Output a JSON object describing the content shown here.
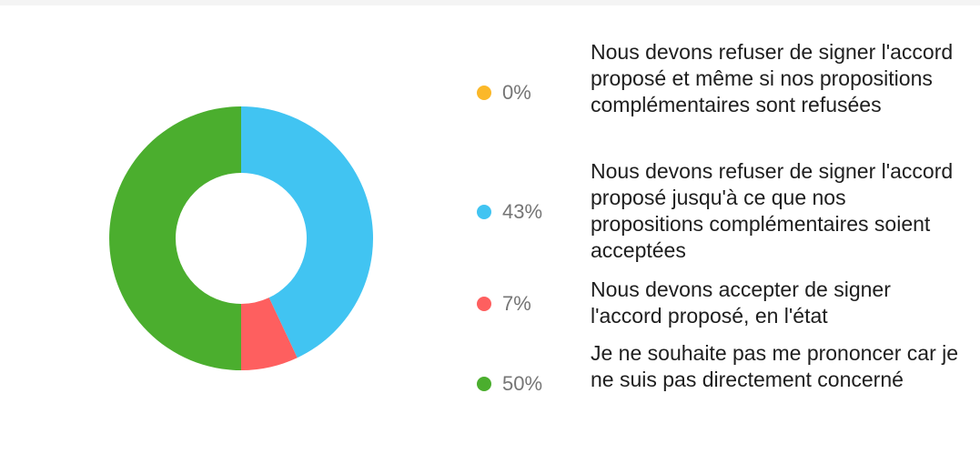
{
  "chart_data": {
    "type": "pie",
    "variant": "donut",
    "legend_position": "right",
    "slices": [
      {
        "label": "Nous devons refuser de signer l'accord proposé et même si nos propositions complémentaires sont refusées",
        "percent_label": "0%",
        "value": 0,
        "color": "#fbb829"
      },
      {
        "label": "Nous devons refuser de signer l'accord proposé jusqu'à ce que nos propositions complémentaires soient acceptées",
        "percent_label": "43%",
        "value": 43,
        "color": "#41c4f2"
      },
      {
        "label": "Nous devons accepter de signer l'accord proposé, en l'état",
        "percent_label": "7%",
        "value": 7,
        "color": "#fe5f5f"
      },
      {
        "label": "Je ne souhaite pas me prononcer car je ne suis pas directement concerné",
        "percent_label": "50%",
        "value": 50,
        "color": "#4bae2e"
      }
    ]
  }
}
